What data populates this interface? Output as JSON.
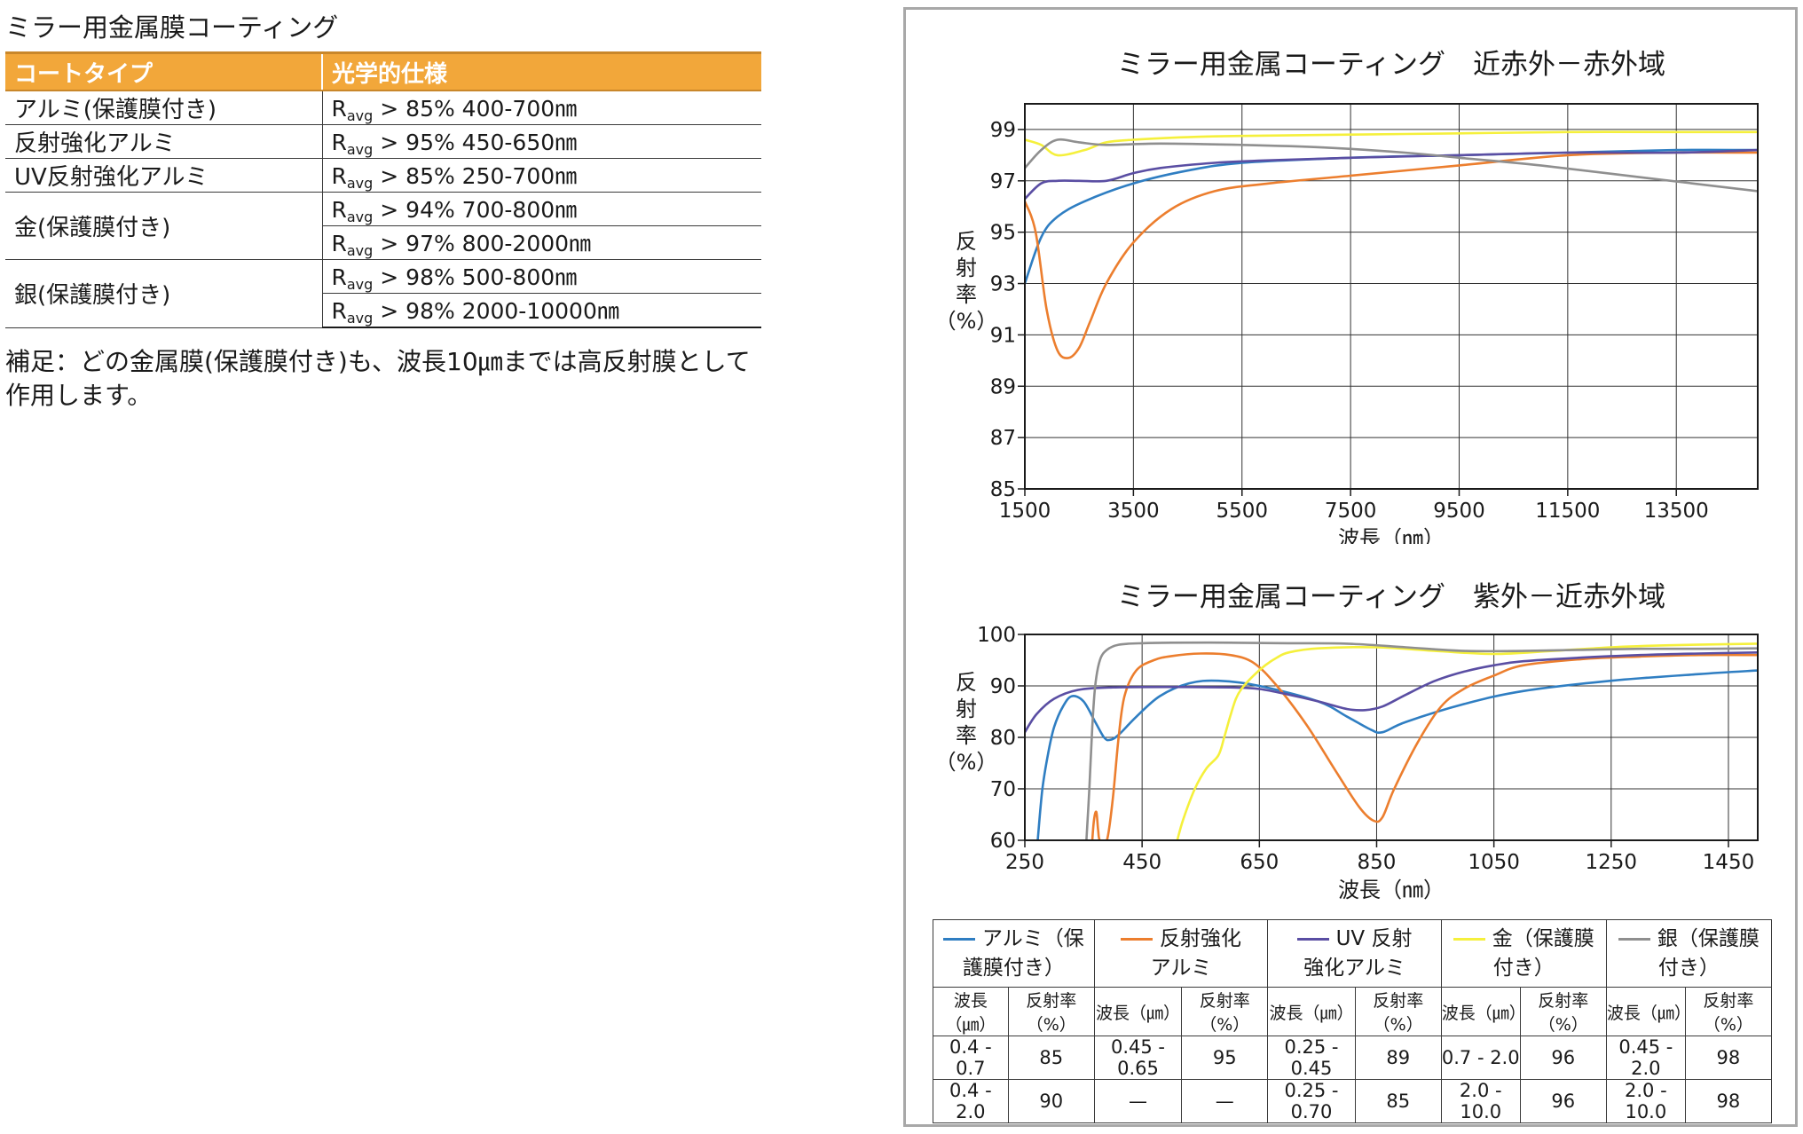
{
  "left": {
    "title": "ミラー用金属膜コーティング",
    "headers": [
      "コートタイプ",
      "光学的仕様"
    ],
    "rows": [
      {
        "type": "アルミ(保護膜付き)",
        "specs": [
          "> 85% 400-700㎚"
        ]
      },
      {
        "type": "反射強化アルミ",
        "specs": [
          "> 95% 450-650㎚"
        ]
      },
      {
        "type": "UV反射強化アルミ",
        "specs": [
          "> 85% 250-700㎚"
        ]
      },
      {
        "type": "金(保護膜付き)",
        "specs": [
          "> 94% 700-800㎚",
          "> 97% 800-2000㎚"
        ]
      },
      {
        "type": "銀(保護膜付き)",
        "specs": [
          "> 98% 500-800㎚",
          "> 98% 2000-10000㎚"
        ]
      }
    ],
    "spec_prefix": "R",
    "spec_sub": "avg",
    "note": "補足：どの金属膜(保護膜付き)も、波長10㎛までは高反射膜として作用します。"
  },
  "colors": {
    "alumi": "#2f7ec2",
    "enhanced_alumi": "#ec7e2e",
    "uv_alumi": "#5a4ea3",
    "gold": "#f5f03c",
    "silver": "#8f8f8f",
    "accent": "#f2a73a"
  },
  "chart_data": [
    {
      "type": "line",
      "title": "ミラー用金属コーティング　近赤外－赤外域",
      "xlabel": "波長（㎚）",
      "ylabel": "反射率（%）",
      "xlim": [
        1500,
        15000
      ],
      "ylim": [
        85,
        100
      ],
      "xticks": [
        1500,
        3500,
        5500,
        7500,
        9500,
        11500,
        13500
      ],
      "yticks": [
        85,
        87,
        89,
        91,
        93,
        95,
        97,
        99
      ],
      "grid": true,
      "series": [
        {
          "key": "alumi",
          "x": [
            1500,
            1800,
            2100,
            2600,
            3500,
            4500,
            5500,
            7500,
            9500,
            11500,
            13500,
            15000
          ],
          "y": [
            93.0,
            94.8,
            95.6,
            96.2,
            96.9,
            97.4,
            97.7,
            97.9,
            98.0,
            98.1,
            98.2,
            98.2
          ]
        },
        {
          "key": "enhanced_alumi",
          "x": [
            1500,
            1700,
            1900,
            2100,
            2300,
            2500,
            2700,
            3000,
            3500,
            4200,
            5000,
            6000,
            7500,
            9500,
            11500,
            13500,
            15000
          ],
          "y": [
            96.2,
            95.0,
            92.0,
            90.4,
            90.1,
            90.5,
            91.5,
            93.0,
            94.6,
            95.9,
            96.6,
            96.9,
            97.2,
            97.6,
            98.0,
            98.1,
            98.1
          ]
        },
        {
          "key": "uv_alumi",
          "x": [
            1500,
            1800,
            2100,
            2500,
            3000,
            3500,
            4000,
            5000,
            6000,
            7500,
            9500,
            11500,
            13500,
            15000
          ],
          "y": [
            96.3,
            96.9,
            97.0,
            97.0,
            97.0,
            97.3,
            97.5,
            97.7,
            97.8,
            97.9,
            98.0,
            98.1,
            98.1,
            98.2
          ]
        },
        {
          "key": "gold",
          "x": [
            1500,
            1800,
            2100,
            2600,
            3000,
            3500,
            4500,
            5500,
            7500,
            9500,
            11500,
            13500,
            15000
          ],
          "y": [
            98.6,
            98.4,
            98.0,
            98.2,
            98.5,
            98.6,
            98.7,
            98.75,
            98.8,
            98.85,
            98.9,
            98.9,
            98.9
          ]
        },
        {
          "key": "silver",
          "x": [
            1500,
            1800,
            2100,
            2500,
            3000,
            4000,
            5500,
            7000,
            8500,
            9500,
            11000,
            13000,
            15000
          ],
          "y": [
            97.5,
            98.2,
            98.6,
            98.5,
            98.4,
            98.45,
            98.4,
            98.3,
            98.1,
            97.9,
            97.6,
            97.1,
            96.6
          ]
        }
      ]
    },
    {
      "type": "line",
      "title": "ミラー用金属コーティング　紫外－近赤外域",
      "xlabel": "波長（㎚）",
      "ylabel": "反射率（%）",
      "xlim": [
        250,
        1500
      ],
      "ylim": [
        60,
        100
      ],
      "xticks": [
        250,
        450,
        650,
        850,
        1050,
        1250,
        1450
      ],
      "yticks": [
        60,
        70,
        80,
        90,
        100
      ],
      "grid": true,
      "series": [
        {
          "key": "alumi",
          "x": [
            272,
            280,
            290,
            300,
            315,
            330,
            350,
            370,
            385,
            395,
            410,
            440,
            480,
            530,
            580,
            650,
            750,
            800,
            840,
            860,
            900,
            1000,
            1100,
            1250,
            1400,
            1500
          ],
          "y": [
            60,
            70,
            77,
            82,
            86,
            88,
            87,
            83,
            80,
            79.5,
            80.5,
            84,
            88,
            90.5,
            91,
            90,
            87,
            84,
            81.5,
            81,
            83,
            86.5,
            89,
            91,
            92.3,
            93
          ]
        },
        {
          "key": "enhanced_alumi",
          "x": [
            365,
            368,
            372,
            375,
            378,
            390,
            400,
            410,
            420,
            440,
            470,
            500,
            550,
            600,
            640,
            680,
            730,
            780,
            820,
            845,
            860,
            880,
            920,
            960,
            1000,
            1050,
            1100,
            1200,
            1300,
            1400,
            1500
          ],
          "y": [
            60,
            64,
            65.5,
            62,
            60,
            60,
            68,
            80,
            88,
            93,
            95,
            95.8,
            96.3,
            96,
            94.5,
            90,
            82.5,
            73.5,
            66.5,
            63.8,
            64.5,
            70,
            79,
            86,
            89.5,
            92,
            94,
            95.2,
            95.7,
            96,
            96
          ]
        },
        {
          "key": "uv_alumi",
          "x": [
            250,
            270,
            300,
            340,
            400,
            500,
            600,
            650,
            700,
            750,
            800,
            830,
            860,
            900,
            950,
            1000,
            1050,
            1100,
            1200,
            1300,
            1400,
            1500
          ],
          "y": [
            81,
            84.5,
            87.5,
            89.2,
            89.7,
            89.8,
            89.7,
            89.4,
            88.3,
            87,
            85.5,
            85.3,
            86,
            88.3,
            91,
            92.8,
            94,
            94.8,
            95.5,
            96,
            96.3,
            96.5
          ]
        },
        {
          "key": "gold",
          "x": [
            510,
            520,
            540,
            560,
            580,
            590,
            600,
            610,
            620,
            640,
            660,
            680,
            700,
            750,
            850,
            950,
            1050,
            1150,
            1250,
            1350,
            1500
          ],
          "y": [
            60,
            64,
            70,
            74,
            76.5,
            80,
            84,
            87.5,
            89.5,
            92,
            94,
            95.5,
            96.5,
            97.3,
            97.5,
            96.8,
            96.2,
            96.8,
            97.5,
            97.9,
            98.2
          ]
        },
        {
          "key": "silver",
          "x": [
            355,
            360,
            365,
            370,
            378,
            390,
            410,
            450,
            500,
            600,
            700,
            800,
            900,
            1000,
            1100,
            1200,
            1300,
            1400,
            1500
          ],
          "y": [
            60,
            70,
            82,
            90,
            95,
            97,
            98,
            98.3,
            98.4,
            98.4,
            98.3,
            98.2,
            97.5,
            96.8,
            96.8,
            97,
            97.2,
            97.2,
            97.3
          ]
        }
      ]
    }
  ],
  "legend": {
    "entries": [
      {
        "key": "alumi",
        "line1": "アルミ（保",
        "line2": "護膜付き）"
      },
      {
        "key": "enhanced_alumi",
        "line1": "反射強化",
        "line2": "アルミ"
      },
      {
        "key": "uv_alumi",
        "line1": "UV 反射",
        "line2": "強化アルミ"
      },
      {
        "key": "gold",
        "line1": "金（保護膜",
        "line2": "付き）"
      },
      {
        "key": "silver",
        "line1": "銀（保護膜",
        "line2": "付き）"
      }
    ],
    "col_wavelength": "波長（㎛）",
    "col_reflect": "反射率（%）",
    "rows": [
      [
        "0.4 - 0.7",
        "85",
        "0.45 - 0.65",
        "95",
        "0.25 - 0.45",
        "89",
        "0.7 - 2.0",
        "96",
        "0.45 - 2.0",
        "98"
      ],
      [
        "0.4 - 2.0",
        "90",
        "—",
        "—",
        "0.25 - 0.70",
        "85",
        "2.0 - 10.0",
        "96",
        "2.0 - 10.0",
        "98"
      ]
    ]
  }
}
